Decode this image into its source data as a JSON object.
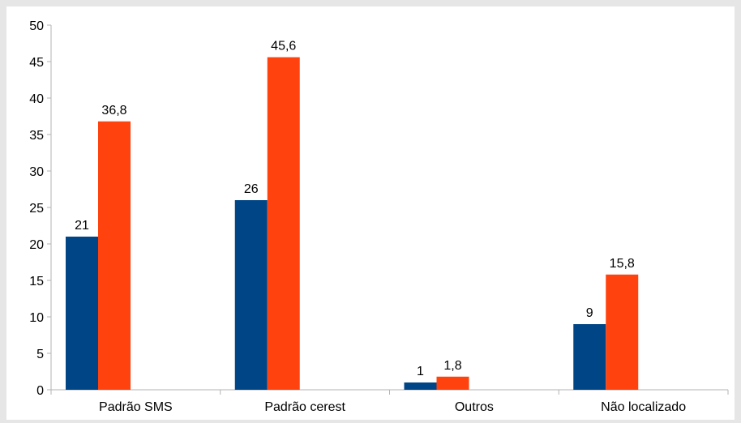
{
  "chart_data": {
    "type": "bar",
    "title": "",
    "xlabel": "",
    "ylabel": "",
    "ylim": [
      0,
      50
    ],
    "yticks": [
      0,
      5,
      10,
      15,
      20,
      25,
      30,
      35,
      40,
      45,
      50
    ],
    "categories": [
      "Padrão SMS",
      "Padrão cerest",
      "Outros",
      "Não localizado"
    ],
    "series": [
      {
        "color": "#004586",
        "values": [
          21,
          26,
          1,
          9
        ],
        "labels": [
          "21",
          "26",
          "1",
          "9"
        ]
      },
      {
        "color": "#ff420e",
        "values": [
          36.8,
          45.6,
          1.8,
          15.8
        ],
        "labels": [
          "36,8",
          "45,6",
          "1,8",
          "15,8"
        ]
      }
    ],
    "grid": false,
    "legend": "none"
  }
}
